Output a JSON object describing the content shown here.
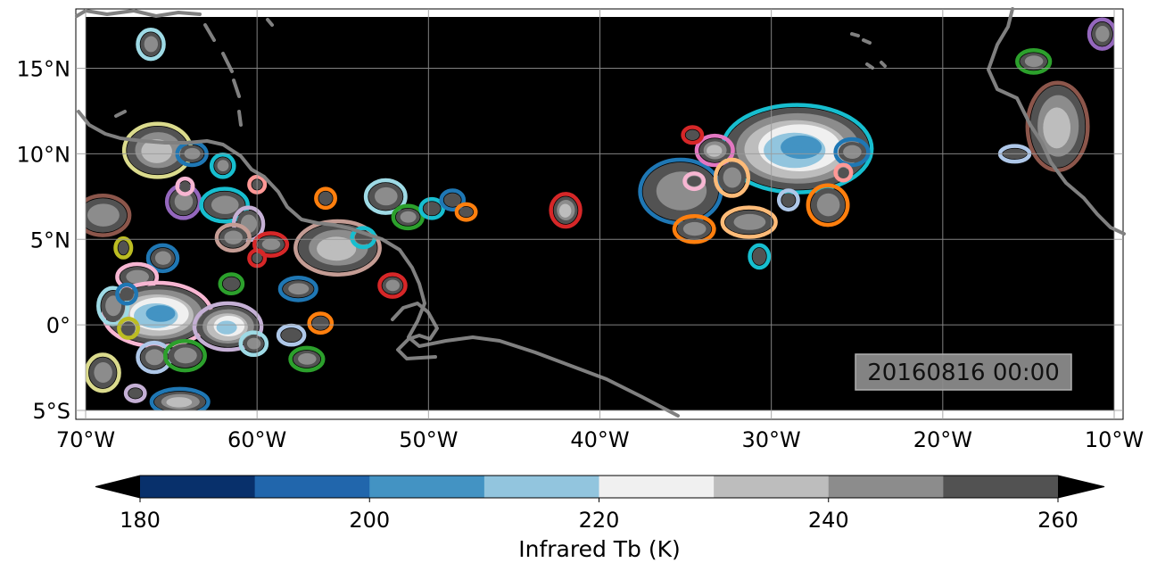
{
  "map": {
    "lon_range": [
      -70,
      -10
    ],
    "lat_range": [
      -5,
      18
    ],
    "background_color": "#000000",
    "coastline_color": "#808080",
    "gridline_color": "#9a9a9a",
    "grid": true,
    "lon_ticks": [
      {
        "value": -70,
        "label": "70°W"
      },
      {
        "value": -60,
        "label": "60°W"
      },
      {
        "value": -50,
        "label": "50°W"
      },
      {
        "value": -40,
        "label": "40°W"
      },
      {
        "value": -30,
        "label": "30°W"
      },
      {
        "value": -20,
        "label": "20°W"
      },
      {
        "value": -10,
        "label": "10°W"
      }
    ],
    "lat_ticks": [
      {
        "value": 15,
        "label": "15°N"
      },
      {
        "value": 10,
        "label": "10°N"
      },
      {
        "value": 5,
        "label": "5°N"
      },
      {
        "value": 0,
        "label": "0°"
      },
      {
        "value": -5,
        "label": "5°S"
      }
    ],
    "timestamp": "20160816 00:00"
  },
  "colorbar": {
    "label": "Infrared Tb (K)",
    "levels": [
      180,
      190,
      200,
      210,
      220,
      230,
      240,
      250,
      260
    ],
    "colors": [
      "#08306b",
      "#2166ac",
      "#4393c3",
      "#92c5de",
      "#f0f0f0",
      "#bdbdbd",
      "#8c8c8c",
      "#525252"
    ],
    "tick_labels": [
      {
        "value": 180,
        "label": "180"
      },
      {
        "value": 200,
        "label": "200"
      },
      {
        "value": 220,
        "label": "220"
      },
      {
        "value": 240,
        "label": "240"
      },
      {
        "value": 260,
        "label": "260"
      }
    ],
    "extend": "both",
    "extend_color": "#000000"
  },
  "cloud_systems": [
    {
      "lon": -28.5,
      "lat": 10.3,
      "rx": 4.2,
      "ry": 2.4,
      "min_tb": 205,
      "outline": "#17becf"
    },
    {
      "lon": -35.3,
      "lat": 7.8,
      "rx": 2.2,
      "ry": 1.7,
      "min_tb": 240,
      "outline": "#1f77b4"
    },
    {
      "lon": -33.3,
      "lat": 10.2,
      "rx": 0.9,
      "ry": 0.7,
      "min_tb": 230,
      "outline": "#e377c2"
    },
    {
      "lon": -32.3,
      "lat": 8.6,
      "rx": 0.8,
      "ry": 0.9,
      "min_tb": 245,
      "outline": "#ffbb78"
    },
    {
      "lon": -31.3,
      "lat": 6.0,
      "rx": 1.4,
      "ry": 0.7,
      "min_tb": 245,
      "outline": "#ffbb78"
    },
    {
      "lon": -34.5,
      "lat": 5.6,
      "rx": 1.0,
      "ry": 0.6,
      "min_tb": 240,
      "outline": "#ff7f0e"
    },
    {
      "lon": -26.7,
      "lat": 7.0,
      "rx": 1.0,
      "ry": 1.0,
      "min_tb": 245,
      "outline": "#ff7f0e"
    },
    {
      "lon": -25.3,
      "lat": 10.1,
      "rx": 0.8,
      "ry": 0.6,
      "min_tb": 245,
      "outline": "#1f77b4"
    },
    {
      "lon": -30.7,
      "lat": 4.0,
      "rx": 0.4,
      "ry": 0.5,
      "min_tb": 250,
      "outline": "#17becf"
    },
    {
      "lon": -42.0,
      "lat": 6.7,
      "rx": 0.7,
      "ry": 0.8,
      "min_tb": 235,
      "outline": "#d62728"
    },
    {
      "lon": -13.3,
      "lat": 11.6,
      "rx": 1.6,
      "ry": 2.4,
      "min_tb": 230,
      "outline": "#8c564b"
    },
    {
      "lon": -10.7,
      "lat": 17.0,
      "rx": 0.6,
      "ry": 0.7,
      "min_tb": 245,
      "outline": "#9467bd"
    },
    {
      "lon": -14.7,
      "lat": 15.4,
      "rx": 0.8,
      "ry": 0.5,
      "min_tb": 245,
      "outline": "#2ca02c"
    },
    {
      "lon": -65.8,
      "lat": 10.2,
      "rx": 1.8,
      "ry": 1.4,
      "min_tb": 235,
      "outline": "#dbdb8d"
    },
    {
      "lon": -66.2,
      "lat": 16.4,
      "rx": 0.6,
      "ry": 0.7,
      "min_tb": 245,
      "outline": "#9edae5"
    },
    {
      "lon": -63.8,
      "lat": 10.0,
      "rx": 0.7,
      "ry": 0.5,
      "min_tb": 245,
      "outline": "#1f77b4"
    },
    {
      "lon": -62.0,
      "lat": 9.3,
      "rx": 0.5,
      "ry": 0.5,
      "min_tb": 245,
      "outline": "#17becf"
    },
    {
      "lon": -64.3,
      "lat": 7.2,
      "rx": 0.8,
      "ry": 0.8,
      "min_tb": 245,
      "outline": "#9467bd"
    },
    {
      "lon": -61.9,
      "lat": 7.0,
      "rx": 1.2,
      "ry": 0.8,
      "min_tb": 240,
      "outline": "#17becf"
    },
    {
      "lon": -69.0,
      "lat": 6.4,
      "rx": 1.4,
      "ry": 1.0,
      "min_tb": 240,
      "outline": "#8c564b"
    },
    {
      "lon": -60.5,
      "lat": 5.9,
      "rx": 0.7,
      "ry": 0.8,
      "min_tb": 245,
      "outline": "#c5b0d5"
    },
    {
      "lon": -61.4,
      "lat": 5.1,
      "rx": 0.8,
      "ry": 0.6,
      "min_tb": 240,
      "outline": "#c49c94"
    },
    {
      "lon": -59.2,
      "lat": 4.7,
      "rx": 0.8,
      "ry": 0.5,
      "min_tb": 240,
      "outline": "#d62728"
    },
    {
      "lon": -55.3,
      "lat": 4.5,
      "rx": 2.3,
      "ry": 1.4,
      "min_tb": 235,
      "outline": "#c49c94"
    },
    {
      "lon": -52.5,
      "lat": 7.5,
      "rx": 1.0,
      "ry": 0.8,
      "min_tb": 240,
      "outline": "#9edae5"
    },
    {
      "lon": -51.2,
      "lat": 6.3,
      "rx": 0.7,
      "ry": 0.5,
      "min_tb": 245,
      "outline": "#2ca02c"
    },
    {
      "lon": -49.8,
      "lat": 6.8,
      "rx": 0.5,
      "ry": 0.4,
      "min_tb": 250,
      "outline": "#17becf"
    },
    {
      "lon": -48.6,
      "lat": 7.3,
      "rx": 0.5,
      "ry": 0.4,
      "min_tb": 250,
      "outline": "#1f77b4"
    },
    {
      "lon": -47.8,
      "lat": 6.6,
      "rx": 0.4,
      "ry": 0.3,
      "min_tb": 250,
      "outline": "#ff7f0e"
    },
    {
      "lon": -56.0,
      "lat": 7.4,
      "rx": 0.4,
      "ry": 0.4,
      "min_tb": 250,
      "outline": "#ff7f0e"
    },
    {
      "lon": -53.8,
      "lat": 5.1,
      "rx": 0.5,
      "ry": 0.4,
      "min_tb": 250,
      "outline": "#17becf"
    },
    {
      "lon": -52.1,
      "lat": 2.3,
      "rx": 0.6,
      "ry": 0.5,
      "min_tb": 245,
      "outline": "#d62728"
    },
    {
      "lon": -65.5,
      "lat": 3.9,
      "rx": 0.7,
      "ry": 0.6,
      "min_tb": 245,
      "outline": "#1f77b4"
    },
    {
      "lon": -67.8,
      "lat": 4.5,
      "rx": 0.3,
      "ry": 0.4,
      "min_tb": 250,
      "outline": "#bcbd22"
    },
    {
      "lon": -67.0,
      "lat": 2.8,
      "rx": 1.0,
      "ry": 0.6,
      "min_tb": 245,
      "outline": "#f7b6d2"
    },
    {
      "lon": -61.5,
      "lat": 2.4,
      "rx": 0.5,
      "ry": 0.4,
      "min_tb": 250,
      "outline": "#2ca02c"
    },
    {
      "lon": -57.6,
      "lat": 2.1,
      "rx": 0.9,
      "ry": 0.5,
      "min_tb": 245,
      "outline": "#1f77b4"
    },
    {
      "lon": -65.8,
      "lat": 0.6,
      "rx": 3.0,
      "ry": 1.7,
      "min_tb": 205,
      "outline": "#f7b6d2"
    },
    {
      "lon": -61.7,
      "lat": -0.1,
      "rx": 1.8,
      "ry": 1.2,
      "min_tb": 210,
      "outline": "#c5b0d5"
    },
    {
      "lon": -68.4,
      "lat": 1.1,
      "rx": 0.7,
      "ry": 0.9,
      "min_tb": 245,
      "outline": "#9edae5"
    },
    {
      "lon": -67.6,
      "lat": 1.8,
      "rx": 0.4,
      "ry": 0.4,
      "min_tb": 250,
      "outline": "#1f77b4"
    },
    {
      "lon": -67.5,
      "lat": -0.2,
      "rx": 0.4,
      "ry": 0.4,
      "min_tb": 250,
      "outline": "#bcbd22"
    },
    {
      "lon": -66.0,
      "lat": -1.9,
      "rx": 0.8,
      "ry": 0.7,
      "min_tb": 245,
      "outline": "#aec7e8"
    },
    {
      "lon": -64.2,
      "lat": -1.8,
      "rx": 1.0,
      "ry": 0.7,
      "min_tb": 240,
      "outline": "#2ca02c"
    },
    {
      "lon": -60.2,
      "lat": -1.1,
      "rx": 0.6,
      "ry": 0.5,
      "min_tb": 245,
      "outline": "#9edae5"
    },
    {
      "lon": -58.0,
      "lat": -0.6,
      "rx": 0.6,
      "ry": 0.4,
      "min_tb": 250,
      "outline": "#aec7e8"
    },
    {
      "lon": -57.1,
      "lat": -2.0,
      "rx": 0.8,
      "ry": 0.5,
      "min_tb": 245,
      "outline": "#2ca02c"
    },
    {
      "lon": -56.3,
      "lat": 0.1,
      "rx": 0.5,
      "ry": 0.4,
      "min_tb": 250,
      "outline": "#ff7f0e"
    },
    {
      "lon": -69.0,
      "lat": -2.8,
      "rx": 0.8,
      "ry": 0.9,
      "min_tb": 245,
      "outline": "#dbdb8d"
    },
    {
      "lon": -64.5,
      "lat": -4.5,
      "rx": 1.5,
      "ry": 0.6,
      "min_tb": 230,
      "outline": "#1f77b4"
    },
    {
      "lon": -67.1,
      "lat": -4.0,
      "rx": 0.4,
      "ry": 0.3,
      "min_tb": 250,
      "outline": "#c5b0d5"
    },
    {
      "lon": -60.0,
      "lat": 8.2,
      "rx": 0.3,
      "ry": 0.3,
      "min_tb": 255,
      "outline": "#ff9896"
    },
    {
      "lon": -64.2,
      "lat": 8.1,
      "rx": 0.3,
      "ry": 0.3,
      "min_tb": 255,
      "outline": "#f7b6d2"
    },
    {
      "lon": -34.5,
      "lat": 8.4,
      "rx": 0.4,
      "ry": 0.3,
      "min_tb": 250,
      "outline": "#f7b6d2"
    },
    {
      "lon": -29.0,
      "lat": 7.3,
      "rx": 0.4,
      "ry": 0.4,
      "min_tb": 250,
      "outline": "#aec7e8"
    },
    {
      "lon": -15.8,
      "lat": 10.0,
      "rx": 0.7,
      "ry": 0.3,
      "min_tb": 250,
      "outline": "#aec7e8"
    },
    {
      "lon": -34.6,
      "lat": 11.1,
      "rx": 0.4,
      "ry": 0.3,
      "min_tb": 250,
      "outline": "#d62728"
    },
    {
      "lon": -25.8,
      "lat": 8.9,
      "rx": 0.3,
      "ry": 0.3,
      "min_tb": 255,
      "outline": "#ff9896"
    },
    {
      "lon": -60.0,
      "lat": 3.9,
      "rx": 0.3,
      "ry": 0.3,
      "min_tb": 255,
      "outline": "#d62728"
    }
  ]
}
